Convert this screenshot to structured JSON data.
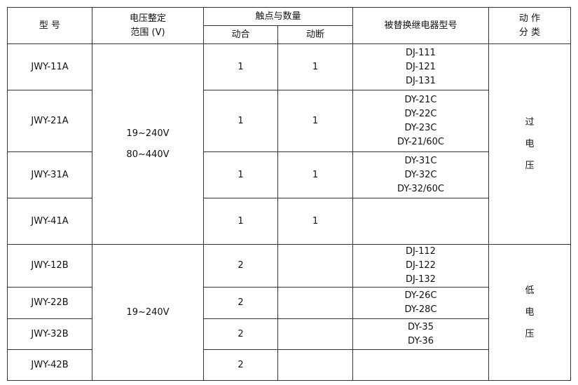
{
  "header": {
    "model": "型 号",
    "voltage_line1": "电压整定",
    "voltage_line2": "范围 (V)",
    "contacts": "触点与数量",
    "make": "动合",
    "break": "动断",
    "replaces": "被替换继电器型号",
    "action_line1": "动 作",
    "action_line2": "分 类"
  },
  "groups": [
    {
      "voltage": [
        "19~240V",
        "80~440V"
      ],
      "action": [
        "过",
        "电",
        "压"
      ]
    },
    {
      "voltage": [
        "19~240V"
      ],
      "action": [
        "低",
        "电",
        "压"
      ]
    }
  ],
  "rows": [
    {
      "model": "JWY-11A",
      "make": "1",
      "break": "1",
      "replaces": [
        "DJ-111",
        "DJ-121",
        "DJ-131"
      ]
    },
    {
      "model": "JWY-21A",
      "make": "1",
      "break": "1",
      "replaces": [
        "DY-21C",
        "DY-22C",
        "DY-23C",
        "DY-21/60C"
      ]
    },
    {
      "model": "JWY-31A",
      "make": "1",
      "break": "1",
      "replaces": [
        "DY-31C",
        "DY-32C",
        "DY-32/60C"
      ]
    },
    {
      "model": "JWY-41A",
      "make": "1",
      "break": "1",
      "replaces": []
    },
    {
      "model": "JWY-12B",
      "make": "2",
      "break": "",
      "replaces": [
        "DJ-112",
        "DJ-122",
        "DJ-132"
      ]
    },
    {
      "model": "JWY-22B",
      "make": "2",
      "break": "",
      "replaces": [
        "DY-26C",
        "DY-28C"
      ]
    },
    {
      "model": "JWY-32B",
      "make": "2",
      "break": "",
      "replaces": [
        "DY-35",
        "DY-36"
      ]
    },
    {
      "model": "JWY-42B",
      "make": "2",
      "break": "",
      "replaces": []
    }
  ]
}
